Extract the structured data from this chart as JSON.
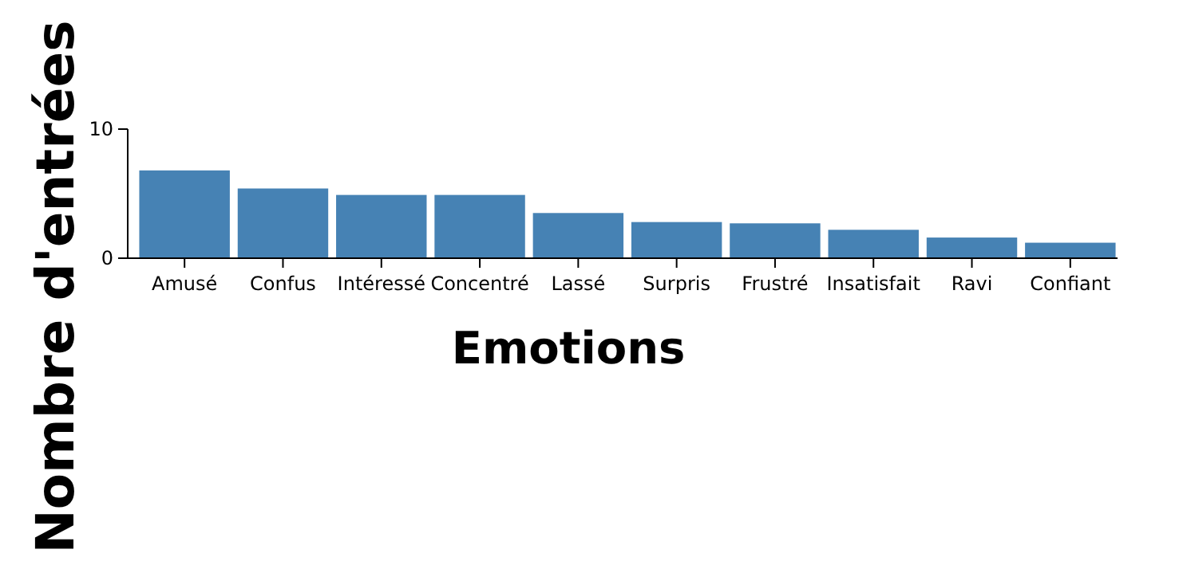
{
  "chart_data": {
    "type": "bar",
    "xlabel": "Emotions",
    "ylabel": "Nombre d'entrées",
    "categories": [
      "Amusé",
      "Confus",
      "Intéressé",
      "Concentré",
      "Lassé",
      "Surpris",
      "Frustré",
      "Insatisfait",
      "Ravi",
      "Confiant"
    ],
    "values": [
      6.8,
      5.4,
      4.9,
      4.9,
      3.5,
      2.8,
      2.7,
      2.2,
      1.6,
      1.2
    ],
    "color": "#4682b4",
    "ylim": [
      0,
      10
    ],
    "yticks": [
      0,
      10
    ],
    "grid": false
  }
}
